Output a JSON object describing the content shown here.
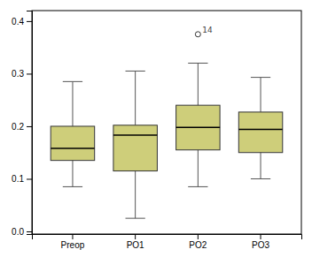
{
  "chart_data": {
    "type": "box",
    "categories": [
      "Preop",
      "PO1",
      "PO2",
      "PO3"
    ],
    "boxes": [
      {
        "q1": 0.135,
        "median": 0.158,
        "q3": 0.2,
        "whisker_low": 0.085,
        "whisker_high": 0.285
      },
      {
        "q1": 0.115,
        "median": 0.183,
        "q3": 0.202,
        "whisker_low": 0.025,
        "whisker_high": 0.305
      },
      {
        "q1": 0.155,
        "median": 0.198,
        "q3": 0.24,
        "whisker_low": 0.085,
        "whisker_high": 0.32
      },
      {
        "q1": 0.15,
        "median": 0.194,
        "q3": 0.227,
        "whisker_low": 0.1,
        "whisker_high": 0.293
      }
    ],
    "outliers": [
      {
        "category": "PO2",
        "value": 0.375,
        "label": "14"
      }
    ],
    "color": "#cece7a",
    "ylim": [
      -0.005,
      0.42
    ],
    "yticks": [
      {
        "value": 0.0,
        "label": "0.0"
      },
      0.1,
      0.2,
      0.3,
      0.4
    ],
    "grid": false
  }
}
